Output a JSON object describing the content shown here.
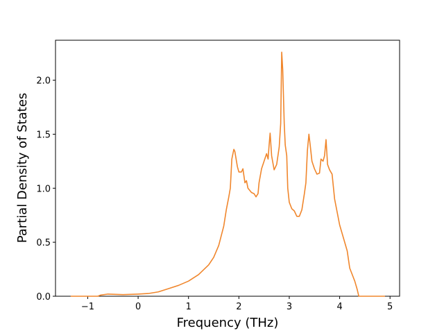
{
  "chart_data": {
    "type": "line",
    "xlabel": "Frequency (THz)",
    "ylabel": "Partial Density of States",
    "x": [
      -1.34,
      -0.8,
      -0.75,
      -0.6,
      -0.3,
      0,
      0.2,
      0.4,
      0.6,
      0.8,
      1.0,
      1.2,
      1.4,
      1.5,
      1.6,
      1.7,
      1.75,
      1.8,
      1.83,
      1.86,
      1.9,
      1.92,
      1.97,
      2.0,
      2.05,
      2.08,
      2.12,
      2.15,
      2.18,
      2.25,
      2.3,
      2.34,
      2.38,
      2.4,
      2.45,
      2.5,
      2.55,
      2.58,
      2.6,
      2.62,
      2.65,
      2.7,
      2.75,
      2.8,
      2.83,
      2.85,
      2.87,
      2.9,
      2.92,
      2.95,
      2.97,
      3.0,
      3.05,
      3.1,
      3.15,
      3.2,
      3.25,
      3.3,
      3.33,
      3.36,
      3.39,
      3.42,
      3.45,
      3.5,
      3.55,
      3.6,
      3.63,
      3.67,
      3.7,
      3.73,
      3.76,
      3.8,
      3.85,
      3.9,
      4.0,
      4.1,
      4.15,
      4.2,
      4.3,
      4.35,
      4.38,
      4.9
    ],
    "values": [
      0,
      0,
      0.01,
      0.02,
      0.015,
      0.02,
      0.025,
      0.04,
      0.07,
      0.1,
      0.14,
      0.2,
      0.29,
      0.36,
      0.47,
      0.65,
      0.8,
      0.92,
      1.0,
      1.27,
      1.36,
      1.34,
      1.2,
      1.15,
      1.15,
      1.18,
      1.05,
      1.07,
      1.0,
      0.96,
      0.95,
      0.92,
      0.95,
      1.05,
      1.18,
      1.25,
      1.32,
      1.27,
      1.4,
      1.51,
      1.3,
      1.17,
      1.22,
      1.38,
      1.6,
      2.26,
      2.1,
      1.6,
      1.4,
      1.3,
      1.0,
      0.87,
      0.81,
      0.79,
      0.74,
      0.74,
      0.8,
      0.95,
      1.05,
      1.35,
      1.5,
      1.38,
      1.25,
      1.18,
      1.13,
      1.14,
      1.27,
      1.25,
      1.3,
      1.45,
      1.22,
      1.17,
      1.13,
      0.9,
      0.66,
      0.5,
      0.42,
      0.26,
      0.14,
      0.06,
      0,
      0
    ],
    "color": "#f0862c",
    "xlim": [
      -1.64,
      5.19
    ],
    "ylim": [
      0,
      2.37
    ],
    "xticks": [
      {
        "value": -1,
        "label": "−1"
      },
      0,
      1,
      2,
      3,
      4,
      5
    ],
    "yticks": [
      {
        "value": 0,
        "label": "0.0"
      },
      0.5,
      {
        "value": 1,
        "label": "1.0"
      },
      1.5,
      {
        "value": 2,
        "label": "2.0"
      }
    ]
  }
}
